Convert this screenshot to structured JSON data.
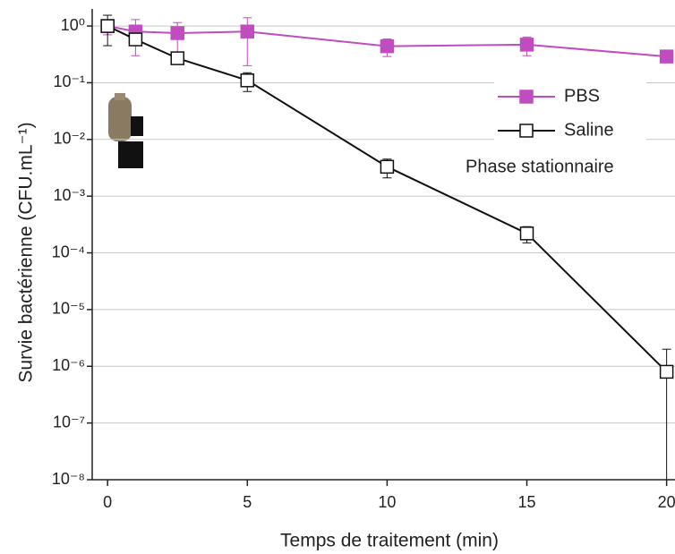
{
  "chart_data": {
    "type": "line",
    "log_y": true,
    "grid": true,
    "legend": "upper right",
    "xlabel": "Temps de traitement (min)",
    "ylabel": "Survie bactérienne (CFU.mL⁻¹)",
    "annotation": "Phase stationnaire",
    "xlim": [
      -0.55,
      20.3
    ],
    "xticks": [
      0,
      5,
      10,
      15,
      20
    ],
    "ylim": [
      1e-08,
      2
    ],
    "yticks": [
      {
        "value": 1e-08,
        "label": "10⁻⁸"
      },
      {
        "value": 1e-07,
        "label": "10⁻⁷"
      },
      {
        "value": 1e-06,
        "label": "10⁻⁶"
      },
      {
        "value": 1e-05,
        "label": "10⁻⁵"
      },
      {
        "value": 0.0001,
        "label": "10⁻⁴"
      },
      {
        "value": 0.001,
        "label": "10⁻³"
      },
      {
        "value": 0.01,
        "label": "10⁻²"
      },
      {
        "value": 0.1,
        "label": "10⁻¹"
      },
      {
        "value": 1,
        "label": "10⁰"
      }
    ],
    "x": [
      0,
      1,
      2.5,
      5,
      10,
      15,
      20
    ],
    "series": [
      {
        "name": "PBS",
        "color": "#c04cc0",
        "marker": "filled",
        "values": [
          1.0,
          0.8,
          0.75,
          0.8,
          0.44,
          0.47,
          0.29
        ],
        "errors": [
          0.3,
          0.5,
          0.4,
          0.6,
          0.15,
          0.17,
          0.05
        ]
      },
      {
        "name": "Saline",
        "color": "#111111",
        "marker": "open",
        "values": [
          1.0,
          0.58,
          0.27,
          0.11,
          0.0033,
          0.00022,
          8e-07
        ],
        "errors": [
          0.55,
          0.12,
          0.05,
          0.04,
          0.0012,
          7e-05,
          1.2e-06
        ]
      }
    ]
  }
}
